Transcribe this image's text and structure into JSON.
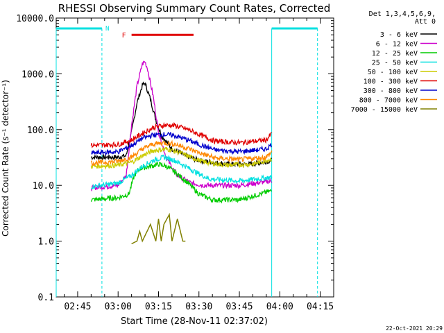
{
  "chart_data": {
    "type": "line",
    "title": "RHESSI Observing Summary Count Rates, Corrected",
    "xlabel": "Start Time (28-Nov-11 02:37:02)",
    "ylabel": "Corrected Count Rate (s⁻¹ detector⁻¹)",
    "yscale": "log",
    "ylim": [
      0.1,
      10000
    ],
    "xlim": [
      "02:37:02",
      "04:20:00"
    ],
    "x_ticks": [
      "02:45",
      "03:00",
      "03:15",
      "03:30",
      "03:45",
      "04:00",
      "04:15"
    ],
    "y_ticks": [
      "0.1",
      "1.0",
      "10.0",
      "100.0",
      "1000.0",
      "10000.0"
    ],
    "legend_header": [
      "Det 1,3,4,5,6,9,",
      "Att 0"
    ],
    "legend_position": "right",
    "footer_date": "22-Oct-2021 20:29",
    "night_markers": [
      {
        "label": "N",
        "start": "02:36:00",
        "end": "02:54:00"
      },
      {
        "label": "",
        "start": "03:57:00",
        "end": "04:14:00"
      }
    ],
    "flare_marker": {
      "label": "F",
      "start": "03:05:00",
      "end": "03:28:00",
      "y": 5000
    },
    "series": [
      {
        "name": "3 - 6 keV",
        "color": "#000000",
        "start": "02:50",
        "end": "03:57",
        "points": [
          [
            "02:50",
            32
          ],
          [
            "03:00",
            32
          ],
          [
            "03:03",
            34
          ],
          [
            "03:05",
            90
          ],
          [
            "03:07",
            300
          ],
          [
            "03:09",
            620
          ],
          [
            "03:10",
            680
          ],
          [
            "03:12",
            350
          ],
          [
            "03:14",
            150
          ],
          [
            "03:16",
            80
          ],
          [
            "03:20",
            45
          ],
          [
            "03:25",
            34
          ],
          [
            "03:30",
            28
          ],
          [
            "03:40",
            24
          ],
          [
            "03:50",
            24
          ],
          [
            "03:57",
            28
          ]
        ]
      },
      {
        "name": "6 - 12 keV",
        "color": "#cc00cc",
        "start": "02:50",
        "end": "03:57",
        "points": [
          [
            "02:50",
            9
          ],
          [
            "03:00",
            10
          ],
          [
            "03:03",
            15
          ],
          [
            "03:05",
            120
          ],
          [
            "03:07",
            600
          ],
          [
            "03:09",
            1500
          ],
          [
            "03:10",
            1650
          ],
          [
            "03:11",
            1200
          ],
          [
            "03:13",
            400
          ],
          [
            "03:15",
            90
          ],
          [
            "03:18",
            30
          ],
          [
            "03:22",
            15
          ],
          [
            "03:27",
            11
          ],
          [
            "03:32",
            10
          ],
          [
            "03:45",
            10
          ],
          [
            "03:57",
            12
          ]
        ]
      },
      {
        "name": "12 - 25 keV",
        "color": "#00cc00",
        "start": "02:50",
        "end": "03:57",
        "points": [
          [
            "02:50",
            5.5
          ],
          [
            "03:00",
            6
          ],
          [
            "03:04",
            7
          ],
          [
            "03:06",
            15
          ],
          [
            "03:08",
            20
          ],
          [
            "03:12",
            22
          ],
          [
            "03:15",
            24
          ],
          [
            "03:18",
            22
          ],
          [
            "03:22",
            16
          ],
          [
            "03:26",
            11
          ],
          [
            "03:30",
            7
          ],
          [
            "03:35",
            5.5
          ],
          [
            "03:45",
            5.5
          ],
          [
            "03:57",
            8
          ]
        ]
      },
      {
        "name": "25 - 50 keV",
        "color": "#00e0e0",
        "start": "02:50",
        "end": "03:57",
        "points": [
          [
            "02:50",
            9.5
          ],
          [
            "03:00",
            11
          ],
          [
            "03:05",
            15
          ],
          [
            "03:09",
            22
          ],
          [
            "03:13",
            28
          ],
          [
            "03:17",
            32
          ],
          [
            "03:21",
            28
          ],
          [
            "03:25",
            22
          ],
          [
            "03:29",
            17
          ],
          [
            "03:34",
            13
          ],
          [
            "03:45",
            12
          ],
          [
            "03:57",
            14
          ]
        ]
      },
      {
        "name": "50 - 100 keV",
        "color": "#cccc00",
        "start": "02:50",
        "end": "03:57",
        "points": [
          [
            "02:50",
            22
          ],
          [
            "03:00",
            23
          ],
          [
            "03:05",
            26
          ],
          [
            "03:09",
            34
          ],
          [
            "03:13",
            42
          ],
          [
            "03:18",
            45
          ],
          [
            "03:22",
            40
          ],
          [
            "03:27",
            32
          ],
          [
            "03:32",
            26
          ],
          [
            "03:40",
            23
          ],
          [
            "03:50",
            24
          ],
          [
            "03:57",
            30
          ]
        ]
      },
      {
        "name": "100 - 300 keV",
        "color": "#e00000",
        "start": "02:50",
        "end": "03:57",
        "points": [
          [
            "02:50",
            52
          ],
          [
            "03:00",
            54
          ],
          [
            "03:05",
            65
          ],
          [
            "03:09",
            85
          ],
          [
            "03:13",
            108
          ],
          [
            "03:17",
            120
          ],
          [
            "03:21",
            118
          ],
          [
            "03:26",
            100
          ],
          [
            "03:31",
            78
          ],
          [
            "03:36",
            62
          ],
          [
            "03:45",
            58
          ],
          [
            "03:55",
            65
          ],
          [
            "03:57",
            85
          ]
        ]
      },
      {
        "name": "300 - 800 keV",
        "color": "#0000cc",
        "start": "02:50",
        "end": "03:57",
        "points": [
          [
            "02:50",
            38
          ],
          [
            "03:00",
            40
          ],
          [
            "03:05",
            52
          ],
          [
            "03:09",
            70
          ],
          [
            "03:13",
            80
          ],
          [
            "03:17",
            82
          ],
          [
            "03:21",
            78
          ],
          [
            "03:26",
            65
          ],
          [
            "03:31",
            52
          ],
          [
            "03:36",
            43
          ],
          [
            "03:45",
            40
          ],
          [
            "03:55",
            45
          ],
          [
            "03:57",
            55
          ]
        ]
      },
      {
        "name": "800 - 7000 keV",
        "color": "#ff8800",
        "start": "02:50",
        "end": "03:57",
        "points": [
          [
            "02:50",
            25
          ],
          [
            "03:00",
            27
          ],
          [
            "03:05",
            32
          ],
          [
            "03:09",
            45
          ],
          [
            "03:13",
            55
          ],
          [
            "03:17",
            58
          ],
          [
            "03:21",
            55
          ],
          [
            "03:26",
            46
          ],
          [
            "03:31",
            37
          ],
          [
            "03:36",
            31
          ],
          [
            "03:45",
            29
          ],
          [
            "03:55",
            32
          ],
          [
            "03:57",
            40
          ]
        ]
      },
      {
        "name": "7000 - 15000 keV",
        "color": "#808000",
        "start": "03:05",
        "end": "03:25",
        "points": [
          [
            "03:05",
            0.9
          ],
          [
            "03:07",
            1.0
          ],
          [
            "03:08",
            1.5
          ],
          [
            "03:09",
            1.0
          ],
          [
            "03:12",
            2.0
          ],
          [
            "03:14",
            1.0
          ],
          [
            "03:15",
            2.5
          ],
          [
            "03:16",
            1.0
          ],
          [
            "03:17",
            2.0
          ],
          [
            "03:19",
            3.0
          ],
          [
            "03:20",
            1.0
          ],
          [
            "03:22",
            2.5
          ],
          [
            "03:24",
            1.0
          ],
          [
            "03:25",
            1.0
          ]
        ]
      }
    ]
  }
}
